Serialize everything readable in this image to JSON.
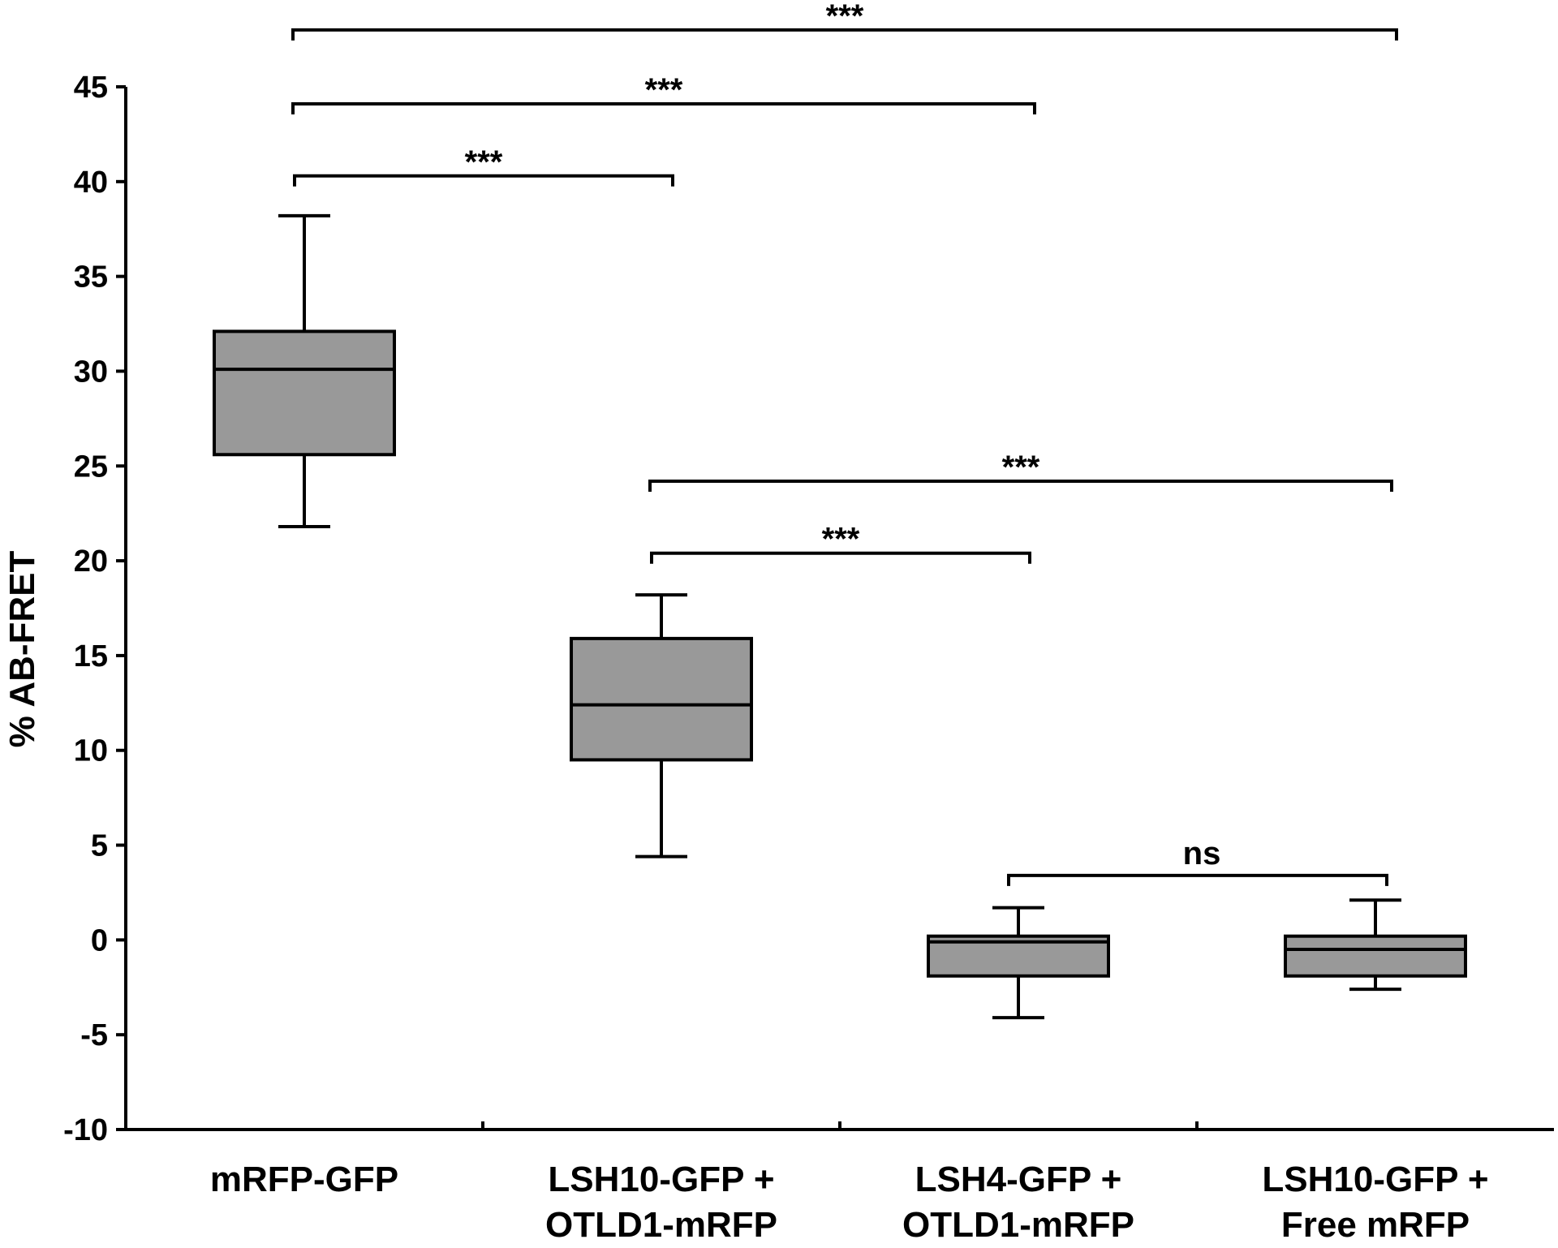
{
  "chart_data": {
    "type": "box",
    "title": "",
    "xlabel": "",
    "ylabel": "% AB-FRET",
    "ylim": [
      -10,
      45
    ],
    "yticks": [
      -10,
      -5,
      0,
      5,
      10,
      15,
      20,
      25,
      30,
      35,
      40,
      45
    ],
    "grid": false,
    "legend": "none",
    "box_color": "#999999",
    "categories": [
      [
        "mRFP-GFP"
      ],
      [
        "LSH10-GFP +",
        "OTLD1-mRFP"
      ],
      [
        "LSH4-GFP +",
        "OTLD1-mRFP"
      ],
      [
        "LSH10-GFP +",
        "Free mRFP"
      ]
    ],
    "boxes": [
      {
        "whisker_low": 21.8,
        "q1": 25.6,
        "median": 30.1,
        "q3": 32.1,
        "whisker_high": 38.2
      },
      {
        "whisker_low": 4.4,
        "q1": 9.5,
        "median": 12.4,
        "q3": 15.9,
        "whisker_high": 18.2
      },
      {
        "whisker_low": -4.1,
        "q1": -1.9,
        "median": -0.1,
        "q3": 0.2,
        "whisker_high": 1.7
      },
      {
        "whisker_low": -2.6,
        "q1": -1.9,
        "median": -0.5,
        "q3": 0.2,
        "whisker_high": 2.1
      }
    ],
    "significance": [
      {
        "from": 0,
        "to": 1,
        "y": 40.3,
        "label": "***"
      },
      {
        "from": 0,
        "to": 2,
        "y": 44.1,
        "label": "***"
      },
      {
        "from": 0,
        "to": 3,
        "y": 48.0,
        "label": "***"
      },
      {
        "from": 1,
        "to": 2,
        "y": 20.4,
        "label": "***"
      },
      {
        "from": 1,
        "to": 3,
        "y": 24.2,
        "label": "***"
      },
      {
        "from": 2,
        "to": 3,
        "y": 3.4,
        "label": "ns"
      }
    ]
  }
}
